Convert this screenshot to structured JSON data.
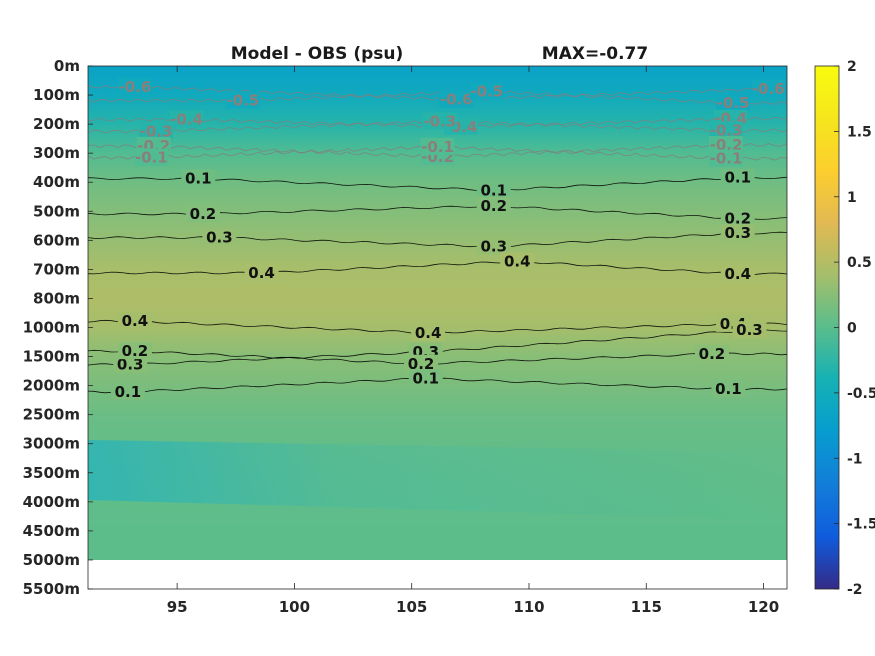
{
  "chart_data": {
    "type": "heatmap",
    "title": "Model - OBS (psu)",
    "subtitle": "MAX=-0.77",
    "xlabel": "",
    "ylabel": "",
    "x_ticks": [
      95,
      100,
      105,
      110,
      115,
      120
    ],
    "xlim": [
      91.2,
      121
    ],
    "y_tick_labels": [
      "0m",
      "100m",
      "200m",
      "300m",
      "400m",
      "500m",
      "600m",
      "700m",
      "800m",
      "1000m",
      "1500m",
      "2000m",
      "2500m",
      "3000m",
      "3500m",
      "4000m",
      "4500m",
      "5000m",
      "5500m"
    ],
    "bottom_data_depth": "5000m",
    "colorbar": {
      "range": [
        -2,
        2
      ],
      "ticks": [
        -2,
        -1.5,
        -1,
        -0.5,
        0,
        0.5,
        1,
        1.5,
        2
      ],
      "tick_labels": [
        "-2",
        "-1.5",
        "-1",
        "-0.5",
        "0",
        "0.5",
        "1",
        "1.5",
        "2"
      ],
      "colormap": "parula"
    },
    "depth_profile": [
      {
        "depth": "0m",
        "value": -0.68
      },
      {
        "depth": "100m",
        "value": -0.55
      },
      {
        "depth": "200m",
        "value": -0.3
      },
      {
        "depth": "300m",
        "value": -0.05
      },
      {
        "depth": "400m",
        "value": 0.12
      },
      {
        "depth": "500m",
        "value": 0.22
      },
      {
        "depth": "600m",
        "value": 0.32
      },
      {
        "depth": "700m",
        "value": 0.42
      },
      {
        "depth": "800m",
        "value": 0.47
      },
      {
        "depth": "1000m",
        "value": 0.4
      },
      {
        "depth": "1500m",
        "value": 0.25
      },
      {
        "depth": "2000m",
        "value": 0.18
      },
      {
        "depth": "2500m",
        "value": 0.09
      },
      {
        "depth": "3000m",
        "value": 0.06
      },
      {
        "depth": "3500m",
        "value": 0.04
      },
      {
        "depth": "4000m",
        "value": 0.03
      },
      {
        "depth": "4500m",
        "value": 0.02
      },
      {
        "depth": "5000m",
        "value": 0.02
      }
    ],
    "contours": [
      {
        "level": "-0.6",
        "color": "#7f7f7f",
        "labels": [
          {
            "x": 93.2,
            "depth": "100m"
          },
          {
            "x": 106.9,
            "depth": "100m"
          },
          {
            "x": 120.2,
            "depth": "100m"
          }
        ]
      },
      {
        "level": "-0.5",
        "color": "#7f7f7f",
        "labels": [
          {
            "x": 97.8,
            "depth": "100m"
          },
          {
            "x": 108.2,
            "depth": "100m"
          },
          {
            "x": 118.7,
            "depth": "100m"
          }
        ]
      },
      {
        "level": "-0.4",
        "color": "#7f7f7f",
        "labels": [
          {
            "x": 95.4,
            "depth": "200m"
          },
          {
            "x": 107.1,
            "depth": "200m"
          },
          {
            "x": 118.6,
            "depth": "200m"
          }
        ]
      },
      {
        "level": "-0.3",
        "color": "#7f7f7f",
        "labels": [
          {
            "x": 94.1,
            "depth": "200m"
          },
          {
            "x": 106.2,
            "depth": "200m"
          },
          {
            "x": 118.4,
            "depth": "200m"
          }
        ]
      },
      {
        "level": "-0.2",
        "color": "#7f7f7f",
        "labels": [
          {
            "x": 94.0,
            "depth": "300m"
          },
          {
            "x": 106.1,
            "depth": "300m"
          },
          {
            "x": 118.4,
            "depth": "300m"
          }
        ]
      },
      {
        "level": "-0.1",
        "color": "#7f7f7f",
        "labels": [
          {
            "x": 93.9,
            "depth": "300m"
          },
          {
            "x": 106.1,
            "depth": "300m"
          },
          {
            "x": 118.4,
            "depth": "300m"
          }
        ]
      },
      {
        "level": "0.1",
        "color": "#000000",
        "labels": [
          {
            "x": 95.9,
            "depth": "400m"
          },
          {
            "x": 108.5,
            "depth": "400m"
          },
          {
            "x": 118.9,
            "depth": "400m"
          }
        ]
      },
      {
        "level": "0.2",
        "color": "#000000",
        "labels": [
          {
            "x": 96.1,
            "depth": "500m"
          },
          {
            "x": 108.5,
            "depth": "500m"
          },
          {
            "x": 118.9,
            "depth": "500m"
          }
        ]
      },
      {
        "level": "0.3",
        "color": "#000000",
        "labels": [
          {
            "x": 96.8,
            "depth": "600m"
          },
          {
            "x": 108.5,
            "depth": "600m"
          },
          {
            "x": 118.9,
            "depth": "600m"
          }
        ]
      },
      {
        "level": "0.4",
        "color": "#000000",
        "labels": [
          {
            "x": 98.6,
            "depth": "700m"
          },
          {
            "x": 109.5,
            "depth": "700m"
          },
          {
            "x": 118.9,
            "depth": "700m"
          }
        ]
      },
      {
        "level": "0.4",
        "color": "#000000",
        "labels": [
          {
            "x": 93.2,
            "depth": "1000m"
          },
          {
            "x": 105.7,
            "depth": "1000m"
          },
          {
            "x": 118.7,
            "depth": "1000m"
          }
        ]
      },
      {
        "level": "0.3",
        "color": "#000000",
        "labels": [
          {
            "x": 93.0,
            "depth": "1500m"
          },
          {
            "x": 105.6,
            "depth": "1500m"
          },
          {
            "x": 119.4,
            "depth": "1000m"
          }
        ]
      },
      {
        "level": "0.2",
        "color": "#000000",
        "labels": [
          {
            "x": 93.2,
            "depth": "1500m"
          },
          {
            "x": 105.4,
            "depth": "1500m"
          },
          {
            "x": 117.8,
            "depth": "1500m"
          }
        ]
      },
      {
        "level": "0.1",
        "color": "#000000",
        "labels": [
          {
            "x": 92.9,
            "depth": "2000m"
          },
          {
            "x": 105.6,
            "depth": "2000m"
          },
          {
            "x": 118.5,
            "depth": "2000m"
          }
        ]
      }
    ]
  }
}
